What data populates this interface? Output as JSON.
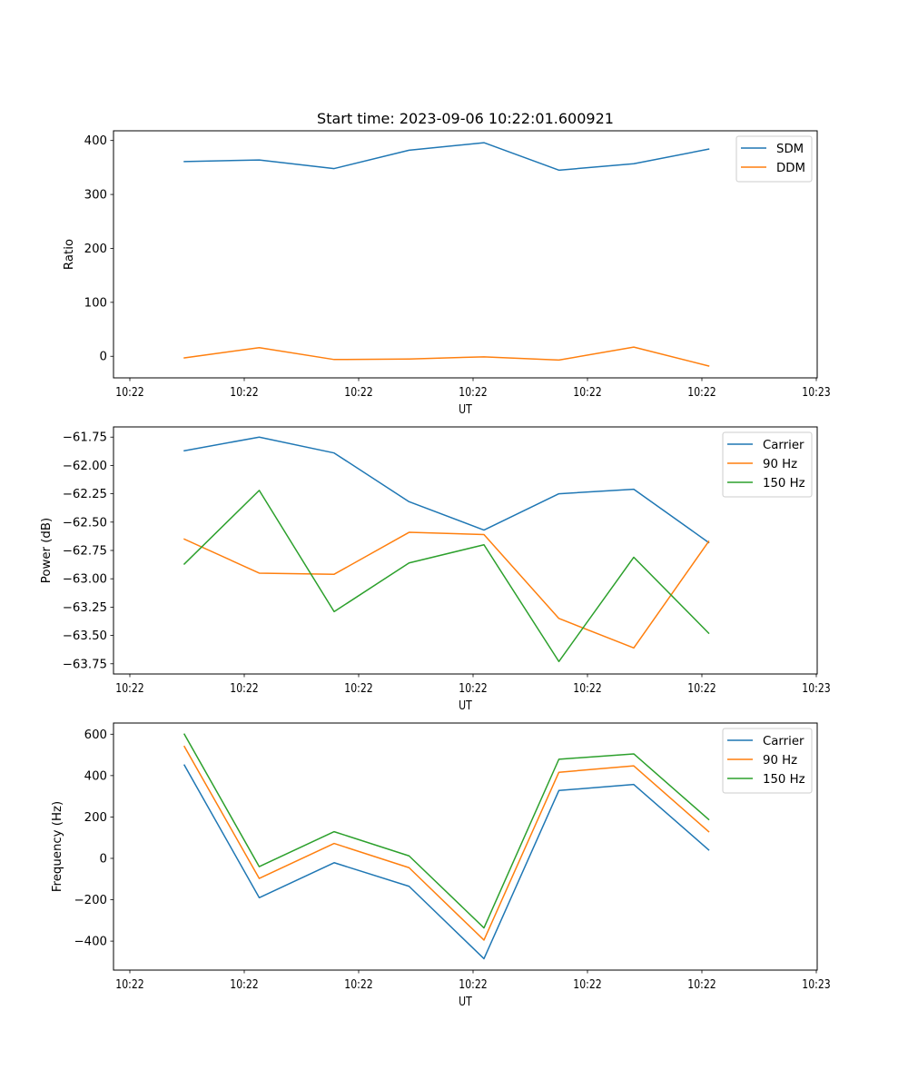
{
  "figure": {
    "title": "Start time: 2023-09-06 10:22:01.600921"
  },
  "colors": {
    "blue": "#1f77b4",
    "orange": "#ff7f0e",
    "green": "#2ca02c",
    "frame": "#000000",
    "legend_border": "#cccccc"
  },
  "chart_data": [
    {
      "type": "line",
      "title": "Start time: 2023-09-06 10:22:01.600921",
      "xlabel": "UT",
      "ylabel": "Ratio",
      "xtick_labels": [
        "10:22",
        "10:22",
        "10:22",
        "10:22",
        "10:22",
        "10:22",
        "10:23"
      ],
      "ylim": [
        -40,
        418
      ],
      "yticks": [
        0,
        100,
        200,
        300,
        400
      ],
      "ytick_labels": [
        "0",
        "100",
        "200",
        "300",
        "400"
      ],
      "legend_position": "top-right",
      "series": [
        {
          "name": "SDM",
          "color": "#1f77b4",
          "values": [
            361,
            364,
            348,
            382,
            396,
            345,
            357,
            384
          ]
        },
        {
          "name": "DDM",
          "color": "#ff7f0e",
          "values": [
            -3,
            16,
            -6,
            -5,
            -1,
            -7,
            17,
            -18
          ]
        }
      ]
    },
    {
      "type": "line",
      "title": "",
      "xlabel": "UT",
      "ylabel": "Power (dB)",
      "xtick_labels": [
        "10:22",
        "10:22",
        "10:22",
        "10:22",
        "10:22",
        "10:22",
        "10:23"
      ],
      "ylim": [
        -63.84,
        -61.66
      ],
      "yticks": [
        -61.75,
        -62.0,
        -62.25,
        -62.5,
        -62.75,
        -63.0,
        -63.25,
        -63.5,
        -63.75
      ],
      "ytick_labels": [
        "−61.75",
        "−62.00",
        "−62.25",
        "−62.50",
        "−62.75",
        "−63.00",
        "−63.25",
        "−63.50",
        "−63.75"
      ],
      "legend_position": "top-right",
      "series": [
        {
          "name": "Carrier",
          "color": "#1f77b4",
          "values": [
            -61.87,
            -61.75,
            -61.89,
            -62.32,
            -62.57,
            -62.25,
            -62.21,
            -62.68
          ]
        },
        {
          "name": "90 Hz",
          "color": "#ff7f0e",
          "values": [
            -62.65,
            -62.95,
            -62.96,
            -62.59,
            -62.61,
            -63.35,
            -63.61,
            -62.67
          ]
        },
        {
          "name": "150 Hz",
          "color": "#2ca02c",
          "values": [
            -62.87,
            -62.22,
            -63.29,
            -62.86,
            -62.7,
            -63.73,
            -62.81,
            -63.48
          ]
        }
      ]
    },
    {
      "type": "line",
      "title": "",
      "xlabel": "UT",
      "ylabel": "Frequency (Hz)",
      "xtick_labels": [
        "10:22",
        "10:22",
        "10:22",
        "10:22",
        "10:22",
        "10:22",
        "10:23"
      ],
      "ylim": [
        -540,
        654
      ],
      "yticks": [
        -400,
        -200,
        0,
        200,
        400,
        600
      ],
      "ytick_labels": [
        "−400",
        "−200",
        "0",
        "200",
        "400",
        "600"
      ],
      "legend_position": "top-right",
      "series": [
        {
          "name": "Carrier",
          "color": "#1f77b4",
          "values": [
            451,
            -190,
            -21,
            -135,
            -485,
            328,
            357,
            41
          ]
        },
        {
          "name": "90 Hz",
          "color": "#ff7f0e",
          "values": [
            541,
            -97,
            72,
            -45,
            -395,
            416,
            447,
            129
          ]
        },
        {
          "name": "150 Hz",
          "color": "#2ca02c",
          "values": [
            600,
            -40,
            129,
            12,
            -336,
            479,
            505,
            188
          ]
        }
      ]
    }
  ]
}
